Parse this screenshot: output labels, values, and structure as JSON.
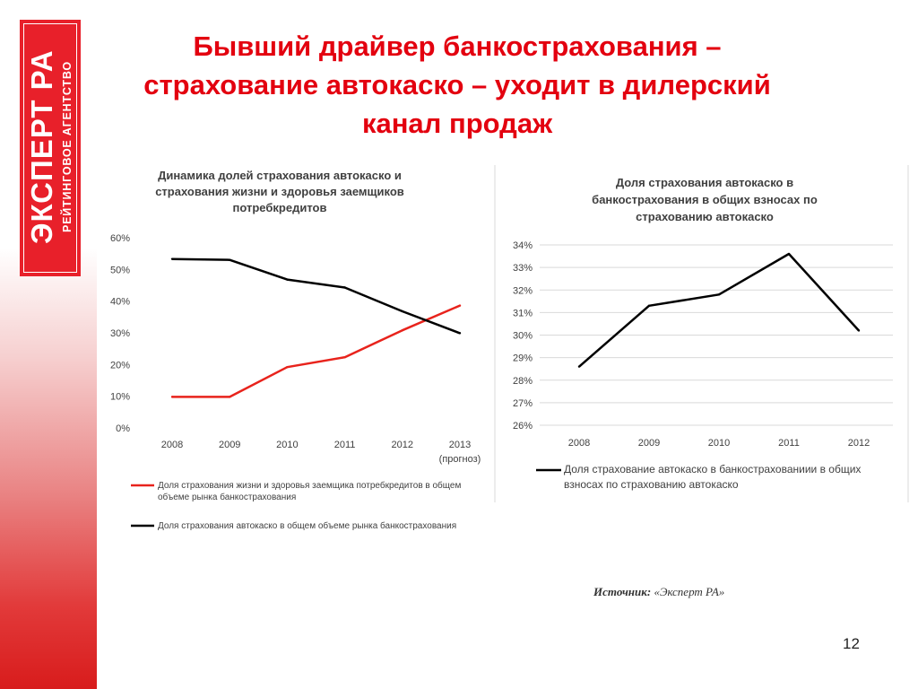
{
  "title": "Бывший драйвер банкострахования – страхование автокаско – уходит в дилерский канал продаж",
  "logo": {
    "main_text": "ЭКСПЕРТ РА",
    "sub_text": "РЕЙТИНГОВОЕ АГЕНТСТВО"
  },
  "source": {
    "label": "Источник:",
    "value": "«Эксперт РА»"
  },
  "page_number": "12",
  "colors": {
    "accent_red": "#e3000f",
    "series_red": "#e8231c",
    "series_black": "#000000",
    "grid": "#d9d9d9"
  },
  "chart_data": [
    {
      "type": "line",
      "title_lines": [
        "Динамика долей страхования автокаско и",
        "страхования жизни и здоровья заемщиков",
        "потребкредитов"
      ],
      "categories": [
        "2008",
        "2009",
        "2010",
        "2011",
        "2012",
        "2013"
      ],
      "category_sublabels": [
        "",
        "",
        "",
        "",
        "",
        "(прогноз)"
      ],
      "y_ticks": [
        "0%",
        "10%",
        "20%",
        "30%",
        "40%",
        "50%",
        "60%"
      ],
      "ylim": [
        0,
        60
      ],
      "grid": false,
      "legend_position": "bottom",
      "series": [
        {
          "name_lines": [
            "Доля страхования жизни и здоровья заемщика потребкредитов в общем",
            "объеме рынка банкострахования"
          ],
          "color": "#e8231c",
          "values": [
            9.8,
            9.8,
            19.2,
            22.3,
            30.8,
            38.6
          ]
        },
        {
          "name_lines": [
            "Доля страхования автокаско в общем объеме рынка банкострахования"
          ],
          "color": "#000000",
          "values": [
            53.3,
            53.0,
            46.8,
            44.3,
            36.8,
            29.9
          ]
        }
      ]
    },
    {
      "type": "line",
      "title_lines": [
        "Доля страхования автокаско в",
        "банкострахования в общих взносах по",
        "страхованию автокаско"
      ],
      "categories": [
        "2008",
        "2009",
        "2010",
        "2011",
        "2012"
      ],
      "y_ticks": [
        "26%",
        "27%",
        "28%",
        "29%",
        "30%",
        "31%",
        "32%",
        "33%",
        "34%"
      ],
      "ylim": [
        26,
        34
      ],
      "grid": true,
      "legend_position": "bottom",
      "series": [
        {
          "name_lines": [
            "Доля страхование автокаско в банкострахованиии в общих",
            "взносах по страхованию автокаско"
          ],
          "color": "#000000",
          "values": [
            28.6,
            31.3,
            31.8,
            33.6,
            30.2
          ]
        }
      ]
    }
  ]
}
